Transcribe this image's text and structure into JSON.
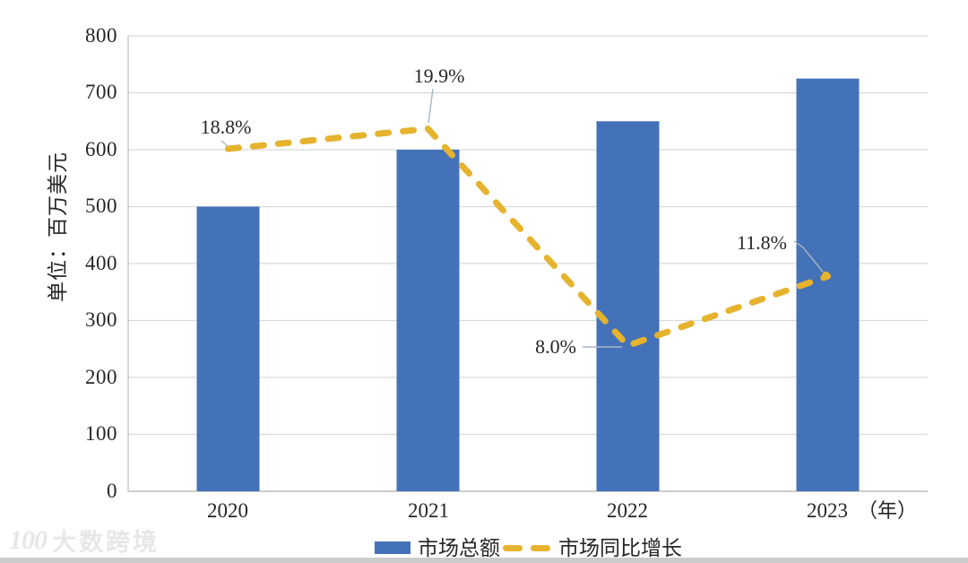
{
  "chart_data": {
    "type": "bar",
    "title": "",
    "categories": [
      "2020",
      "2021",
      "2022",
      "2023"
    ],
    "x_axis_unit_label": "（年）",
    "ylabel": "单位：百万美元",
    "ylim": [
      0,
      800
    ],
    "ytick_step": 100,
    "yticks": [
      "800",
      "700",
      "600",
      "500",
      "400",
      "300",
      "200",
      "100",
      "0"
    ],
    "grid": true,
    "legend_position": "bottom",
    "series": [
      {
        "name": "市场总额",
        "type": "bar",
        "color": "#4472b8",
        "values": [
          500,
          600,
          650,
          725
        ]
      },
      {
        "name": "市场同比增长",
        "type": "dashed-line",
        "color": "#e6b32e",
        "unit": "%",
        "values": [
          18.8,
          19.9,
          8.0,
          11.8
        ],
        "point_labels": [
          "18.8%",
          "19.9%",
          "8.0%",
          "11.8%"
        ],
        "plotted_on_primary_axis_scale": 32
      }
    ]
  },
  "watermark": {
    "logo_text": "100",
    "brand_text": "大数跨境"
  },
  "colors": {
    "bar": "#4472b8",
    "line": "#e6b32e",
    "grid": "#d9d9d9",
    "axis": "#bfbfbf",
    "text": "#262626",
    "leader": "#a9b4c4",
    "watermark": "#e7e7e7",
    "bottom_strip": "#cbcbcb"
  }
}
